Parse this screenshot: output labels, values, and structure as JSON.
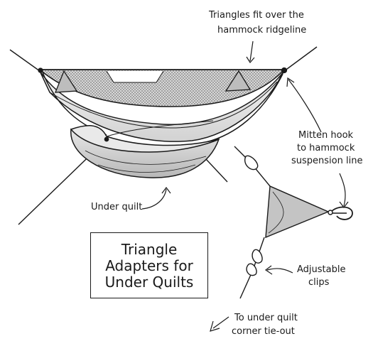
{
  "labels": {
    "ridgeline_1": "Triangles fit over the",
    "ridgeline_2": "hammock ridgeline",
    "mitten_1": "Mitten hook",
    "mitten_2": "to hammock",
    "mitten_3": "suspension line",
    "under_quilt": "Under quilt",
    "clips_1": "Adjustable",
    "clips_2": "clips",
    "tieout_1": "To under quilt",
    "tieout_2": "corner tie-out"
  },
  "title": {
    "line1": "Triangle",
    "line2": "Adapters for",
    "line3": "Under Quilts"
  }
}
